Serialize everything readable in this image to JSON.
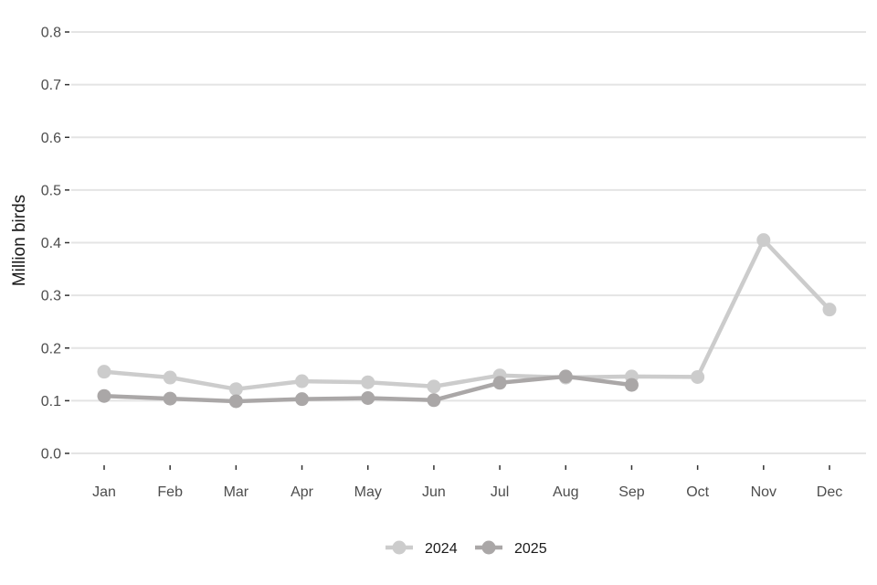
{
  "chart_data": {
    "type": "line",
    "title": "",
    "xlabel": "",
    "ylabel": "Million birds",
    "ylim": [
      0,
      0.8
    ],
    "yticks": [
      "0.0",
      "0.1",
      "0.2",
      "0.3",
      "0.4",
      "0.5",
      "0.6",
      "0.7",
      "0.8"
    ],
    "categories": [
      "Jan",
      "Feb",
      "Mar",
      "Apr",
      "May",
      "Jun",
      "Jul",
      "Aug",
      "Sep",
      "Oct",
      "Nov",
      "Dec"
    ],
    "grid": "horizontal",
    "legend_position": "bottom",
    "series": [
      {
        "name": "2024",
        "color": "#cccccc",
        "values": [
          0.155,
          0.144,
          0.122,
          0.137,
          0.135,
          0.127,
          0.148,
          0.144,
          0.146,
          0.145,
          0.405,
          0.273
        ]
      },
      {
        "name": "2025",
        "color": "#aaa7a7",
        "values": [
          0.109,
          0.104,
          0.099,
          0.103,
          0.105,
          0.101,
          0.134,
          0.146,
          0.13,
          null,
          null,
          null
        ]
      }
    ]
  }
}
